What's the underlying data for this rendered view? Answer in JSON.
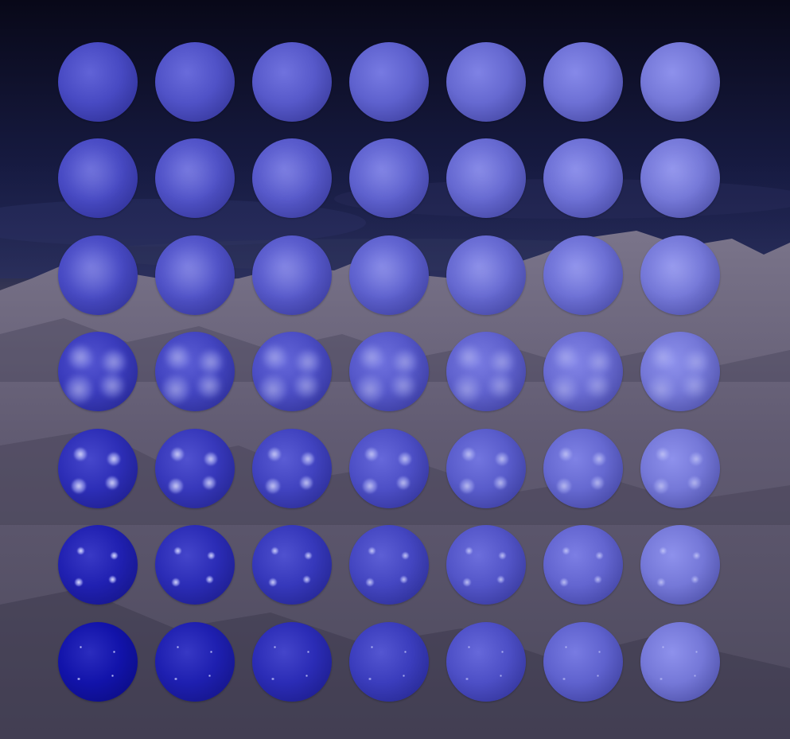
{
  "scene": {
    "description_icons": [
      "sky-background",
      "snowy-mountain-background"
    ],
    "colors": {
      "sky_top": "#080818",
      "sky_mid": "#1b2048",
      "mountain": "#5f5a72",
      "sphere_base": "#6f72d8"
    }
  },
  "grid": {
    "rows": 7,
    "columns": 7,
    "sphere_color": "#6f72d8",
    "rows_data": [
      {
        "specular_sharpness": 0,
        "highlight_intensity": 0.0
      },
      {
        "specular_sharpness": 1,
        "highlight_intensity": 0.15
      },
      {
        "specular_sharpness": 2,
        "highlight_intensity": 0.25
      },
      {
        "specular_sharpness": 3,
        "highlight_intensity": 0.55
      },
      {
        "specular_sharpness": 4,
        "highlight_intensity": 0.9
      },
      {
        "specular_sharpness": 5,
        "highlight_intensity": 1.0
      },
      {
        "specular_sharpness": 6,
        "highlight_intensity": 1.0
      }
    ],
    "columns_data": [
      {
        "diffuse_level": 0.0
      },
      {
        "diffuse_level": 0.17
      },
      {
        "diffuse_level": 0.33
      },
      {
        "diffuse_level": 0.5
      },
      {
        "diffuse_level": 0.67
      },
      {
        "diffuse_level": 0.83
      },
      {
        "diffuse_level": 1.0
      }
    ]
  }
}
